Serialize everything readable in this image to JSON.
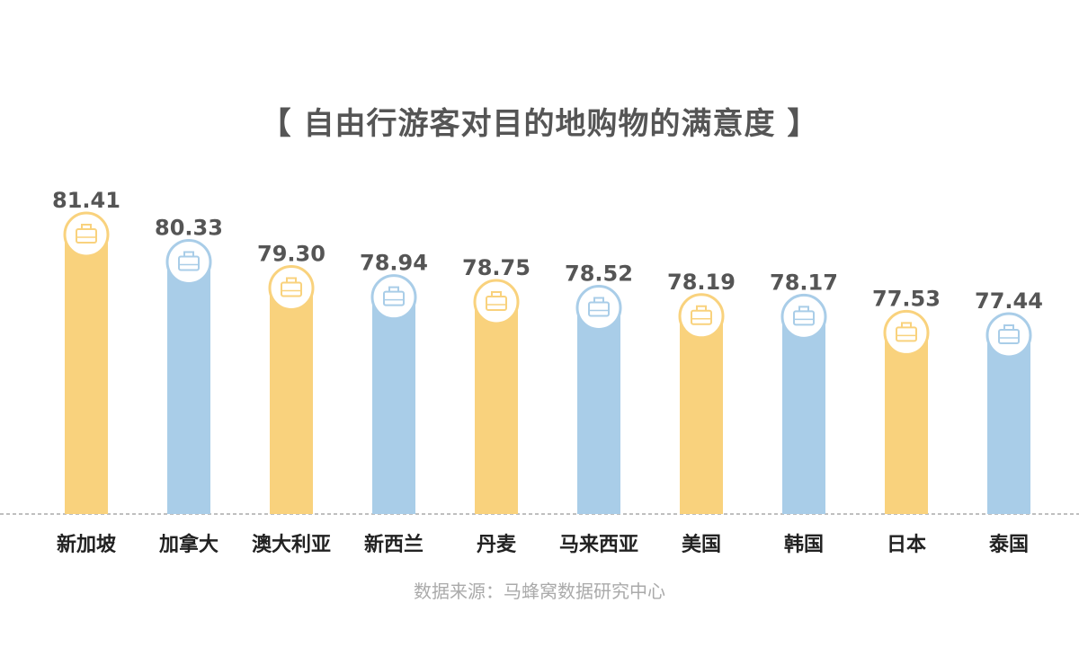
{
  "chart_data": {
    "type": "bar",
    "title": "【 自由行游客对目的地购物的满意度 】",
    "categories": [
      "新加坡",
      "加拿大",
      "澳大利亚",
      "新西兰",
      "丹麦",
      "马来西亚",
      "美国",
      "韩国",
      "日本",
      "泰国"
    ],
    "values": [
      81.41,
      80.33,
      79.3,
      78.94,
      78.75,
      78.52,
      78.19,
      78.17,
      77.53,
      77.44
    ],
    "value_labels": [
      "81.41",
      "80.33",
      "79.30",
      "78.94",
      "78.75",
      "78.52",
      "78.19",
      "78.17",
      "77.53",
      "77.44"
    ],
    "bar_colors": [
      "#f9d27d",
      "#a9cde8",
      "#f9d27d",
      "#a9cde8",
      "#f9d27d",
      "#a9cde8",
      "#f9d27d",
      "#a9cde8",
      "#f9d27d",
      "#a9cde8"
    ],
    "marker_icon": "shopping-bag-icon",
    "baseline": "dashed",
    "grid": false,
    "legend": "none"
  },
  "source": "数据来源：马蜂窝数据研究中心"
}
